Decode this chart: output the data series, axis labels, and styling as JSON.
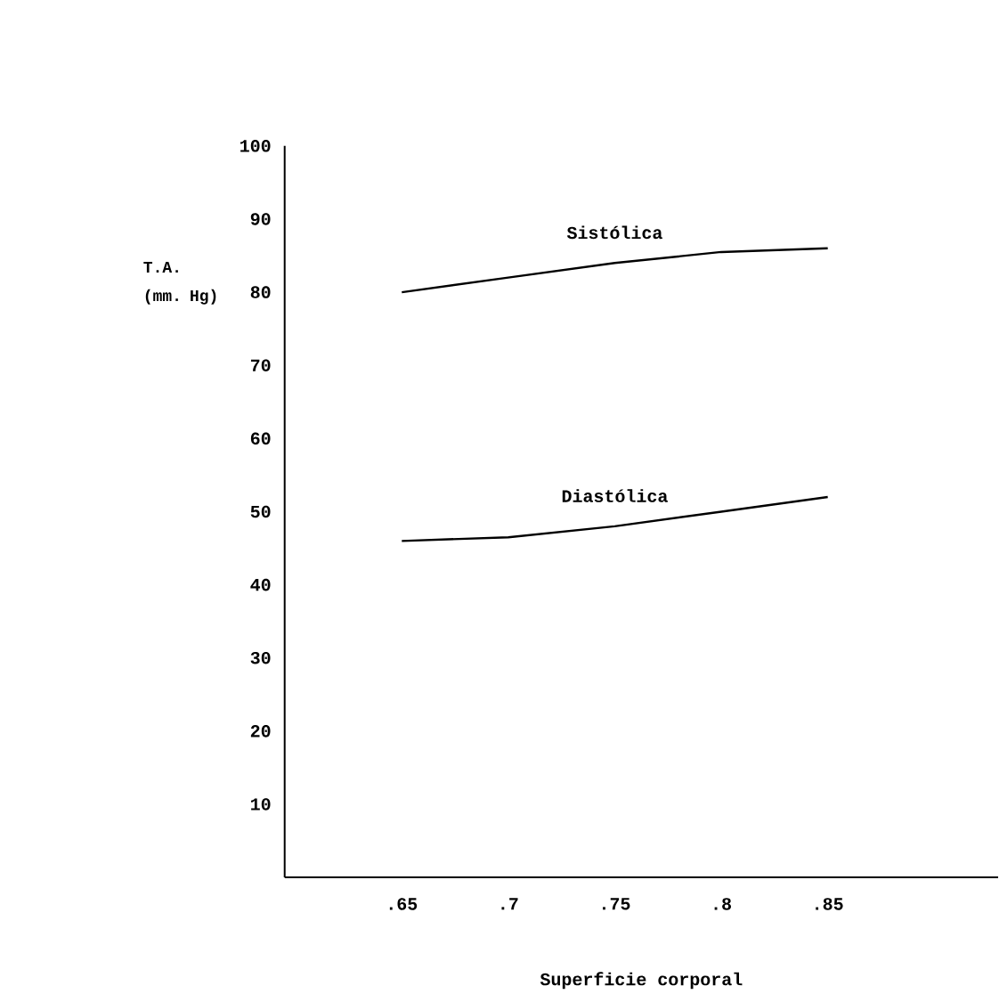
{
  "chart_data": {
    "type": "line",
    "xlabel": "Superficie corporal",
    "ylabel": "T.A. (mm. Hg)",
    "x": [
      0.65,
      0.7,
      0.75,
      0.8,
      0.85
    ],
    "series": [
      {
        "name": "Sistólica",
        "color": "#000000",
        "values": [
          80,
          82,
          84,
          85.5,
          86
        ]
      },
      {
        "name": "Diastólica",
        "color": "#000000",
        "values": [
          46,
          46.5,
          48,
          50,
          52
        ]
      }
    ],
    "xlim": [
      0.595,
      0.93
    ],
    "ylim": [
      0,
      100
    ],
    "xticks": [
      {
        "value": 0.65,
        "label": ".65"
      },
      {
        "value": 0.7,
        "label": ".7"
      },
      {
        "value": 0.75,
        "label": ".75"
      },
      {
        "value": 0.8,
        "label": ".8"
      },
      {
        "value": 0.85,
        "label": ".85"
      }
    ],
    "yticks": [
      10,
      20,
      30,
      40,
      50,
      60,
      70,
      80,
      90,
      100
    ],
    "grid": false,
    "legend": false
  }
}
